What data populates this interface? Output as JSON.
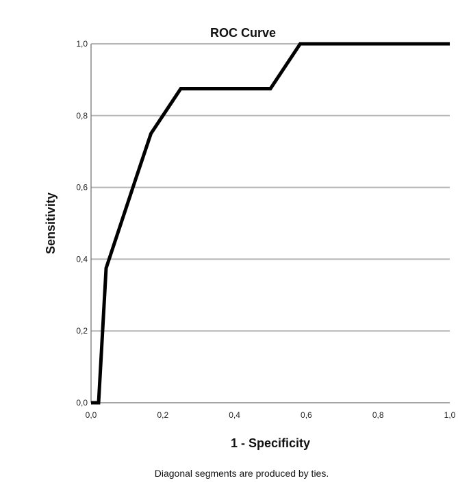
{
  "chart_data": {
    "type": "line",
    "title": "ROC Curve",
    "xlabel": "1 - Specificity",
    "ylabel": "Sensitivity",
    "footnote": "Diagonal segments are produced by ties.",
    "xlim": [
      0,
      1
    ],
    "ylim": [
      0,
      1
    ],
    "xticks": [
      "0,0",
      "0,2",
      "0,4",
      "0,6",
      "0,8",
      "1,0"
    ],
    "yticks": [
      "0,0",
      "0,2",
      "0,4",
      "0,6",
      "0,8",
      "1,0"
    ],
    "grid": "horizontal",
    "series": [
      {
        "x": [
          0.0,
          0.021,
          0.042,
          0.125,
          0.167,
          0.25,
          0.5,
          0.583,
          1.0
        ],
        "y": [
          0.0,
          0.0,
          0.375,
          0.625,
          0.75,
          0.875,
          0.875,
          1.0,
          1.0
        ],
        "color": "#000000"
      }
    ]
  }
}
